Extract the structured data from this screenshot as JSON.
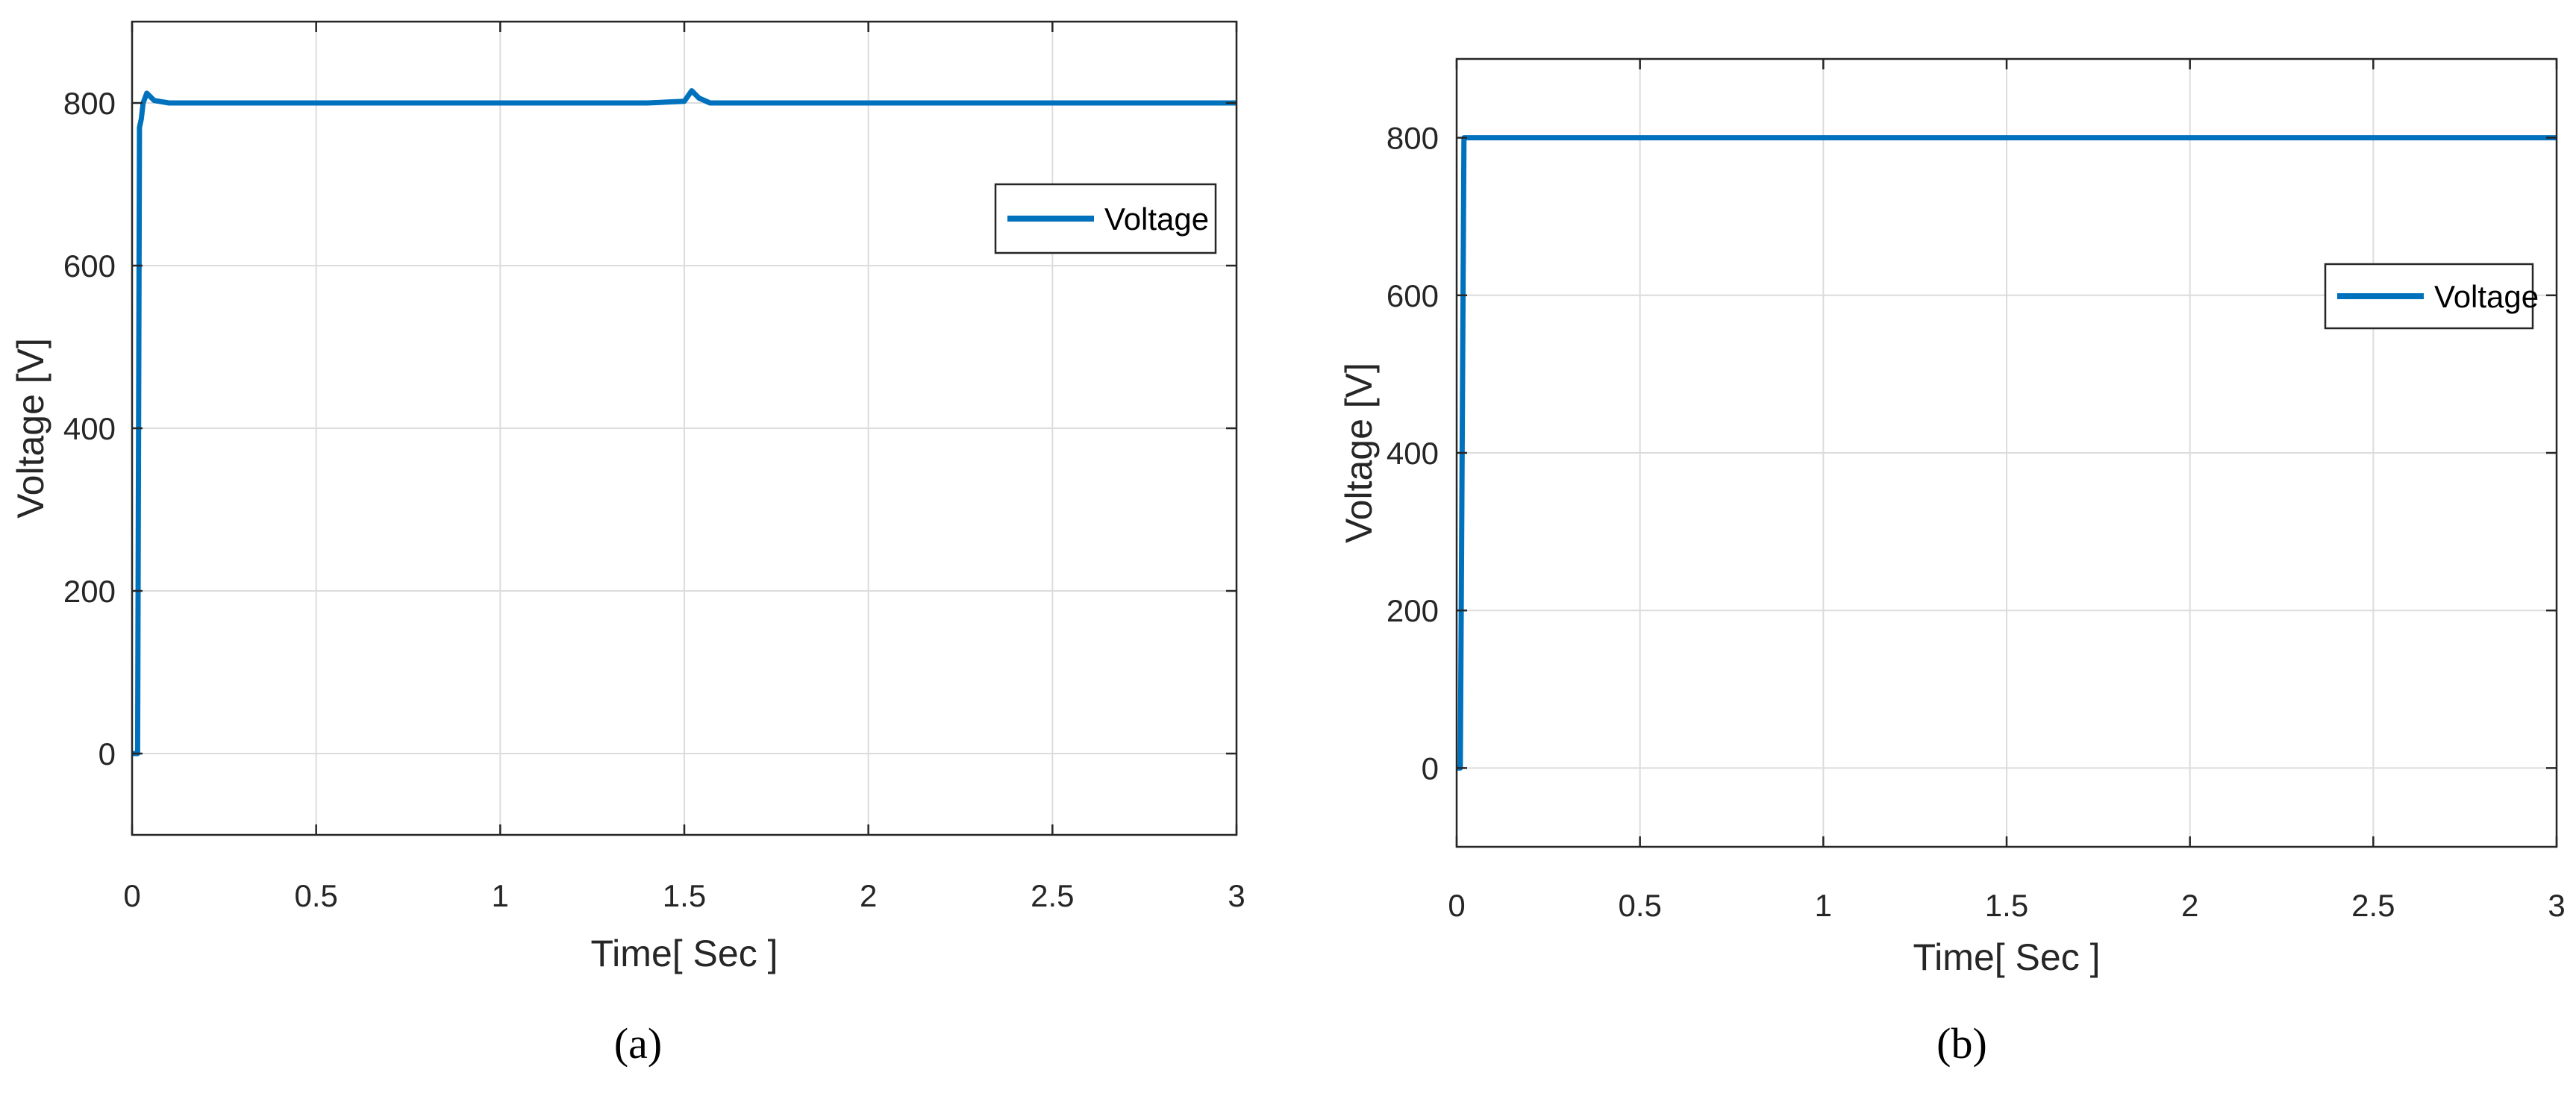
{
  "figure": {
    "panels": [
      "(a)",
      "(b)"
    ]
  },
  "colors": {
    "series": "#0072BD",
    "grid": "#dcdcdc",
    "axis": "#262626"
  },
  "chart_data": [
    {
      "type": "line",
      "title": "",
      "xlabel": "Time[ Sec ]",
      "ylabel": "Voltage [V]",
      "xlim": [
        0,
        3
      ],
      "ylim": [
        -100,
        900
      ],
      "xticks": [
        0,
        0.5,
        1,
        1.5,
        2,
        2.5,
        3
      ],
      "xtick_labels": [
        "0",
        "0.5",
        "1",
        "1.5",
        "2",
        "2.5",
        "3"
      ],
      "yticks": [
        0,
        200,
        400,
        600,
        800
      ],
      "ytick_labels": [
        "0",
        "200",
        "400",
        "600",
        "800"
      ],
      "grid": true,
      "legend": "upper-right",
      "series": [
        {
          "name": "Voltage",
          "x": [
            0,
            0.015,
            0.02,
            0.025,
            0.03,
            0.04,
            0.06,
            0.1,
            0.5,
            1.0,
            1.4,
            1.5,
            1.52,
            1.54,
            1.57,
            1.6,
            2.0,
            2.5,
            3.0
          ],
          "y": [
            0,
            0,
            770,
            780,
            800,
            812,
            803,
            800,
            800,
            800,
            800,
            802,
            815,
            806,
            800,
            800,
            800,
            800,
            800
          ]
        }
      ]
    },
    {
      "type": "line",
      "title": "",
      "xlabel": "Time[ Sec ]",
      "ylabel": "Voltage [V]",
      "xlim": [
        0,
        3
      ],
      "ylim": [
        -100,
        900
      ],
      "xticks": [
        0,
        0.5,
        1,
        1.5,
        2,
        2.5,
        3
      ],
      "xtick_labels": [
        "0",
        "0.5",
        "1",
        "1.5",
        "2",
        "2.5",
        "3"
      ],
      "yticks": [
        0,
        200,
        400,
        600,
        800
      ],
      "ytick_labels": [
        "0",
        "200",
        "400",
        "600",
        "800"
      ],
      "grid": true,
      "legend": "right",
      "series": [
        {
          "name": "Voltage",
          "x": [
            0,
            0.01,
            0.02,
            0.03,
            0.5,
            1.0,
            1.5,
            2.0,
            2.5,
            3.0
          ],
          "y": [
            0,
            0,
            800,
            800,
            800,
            800,
            800,
            800,
            800,
            800
          ]
        }
      ]
    }
  ]
}
